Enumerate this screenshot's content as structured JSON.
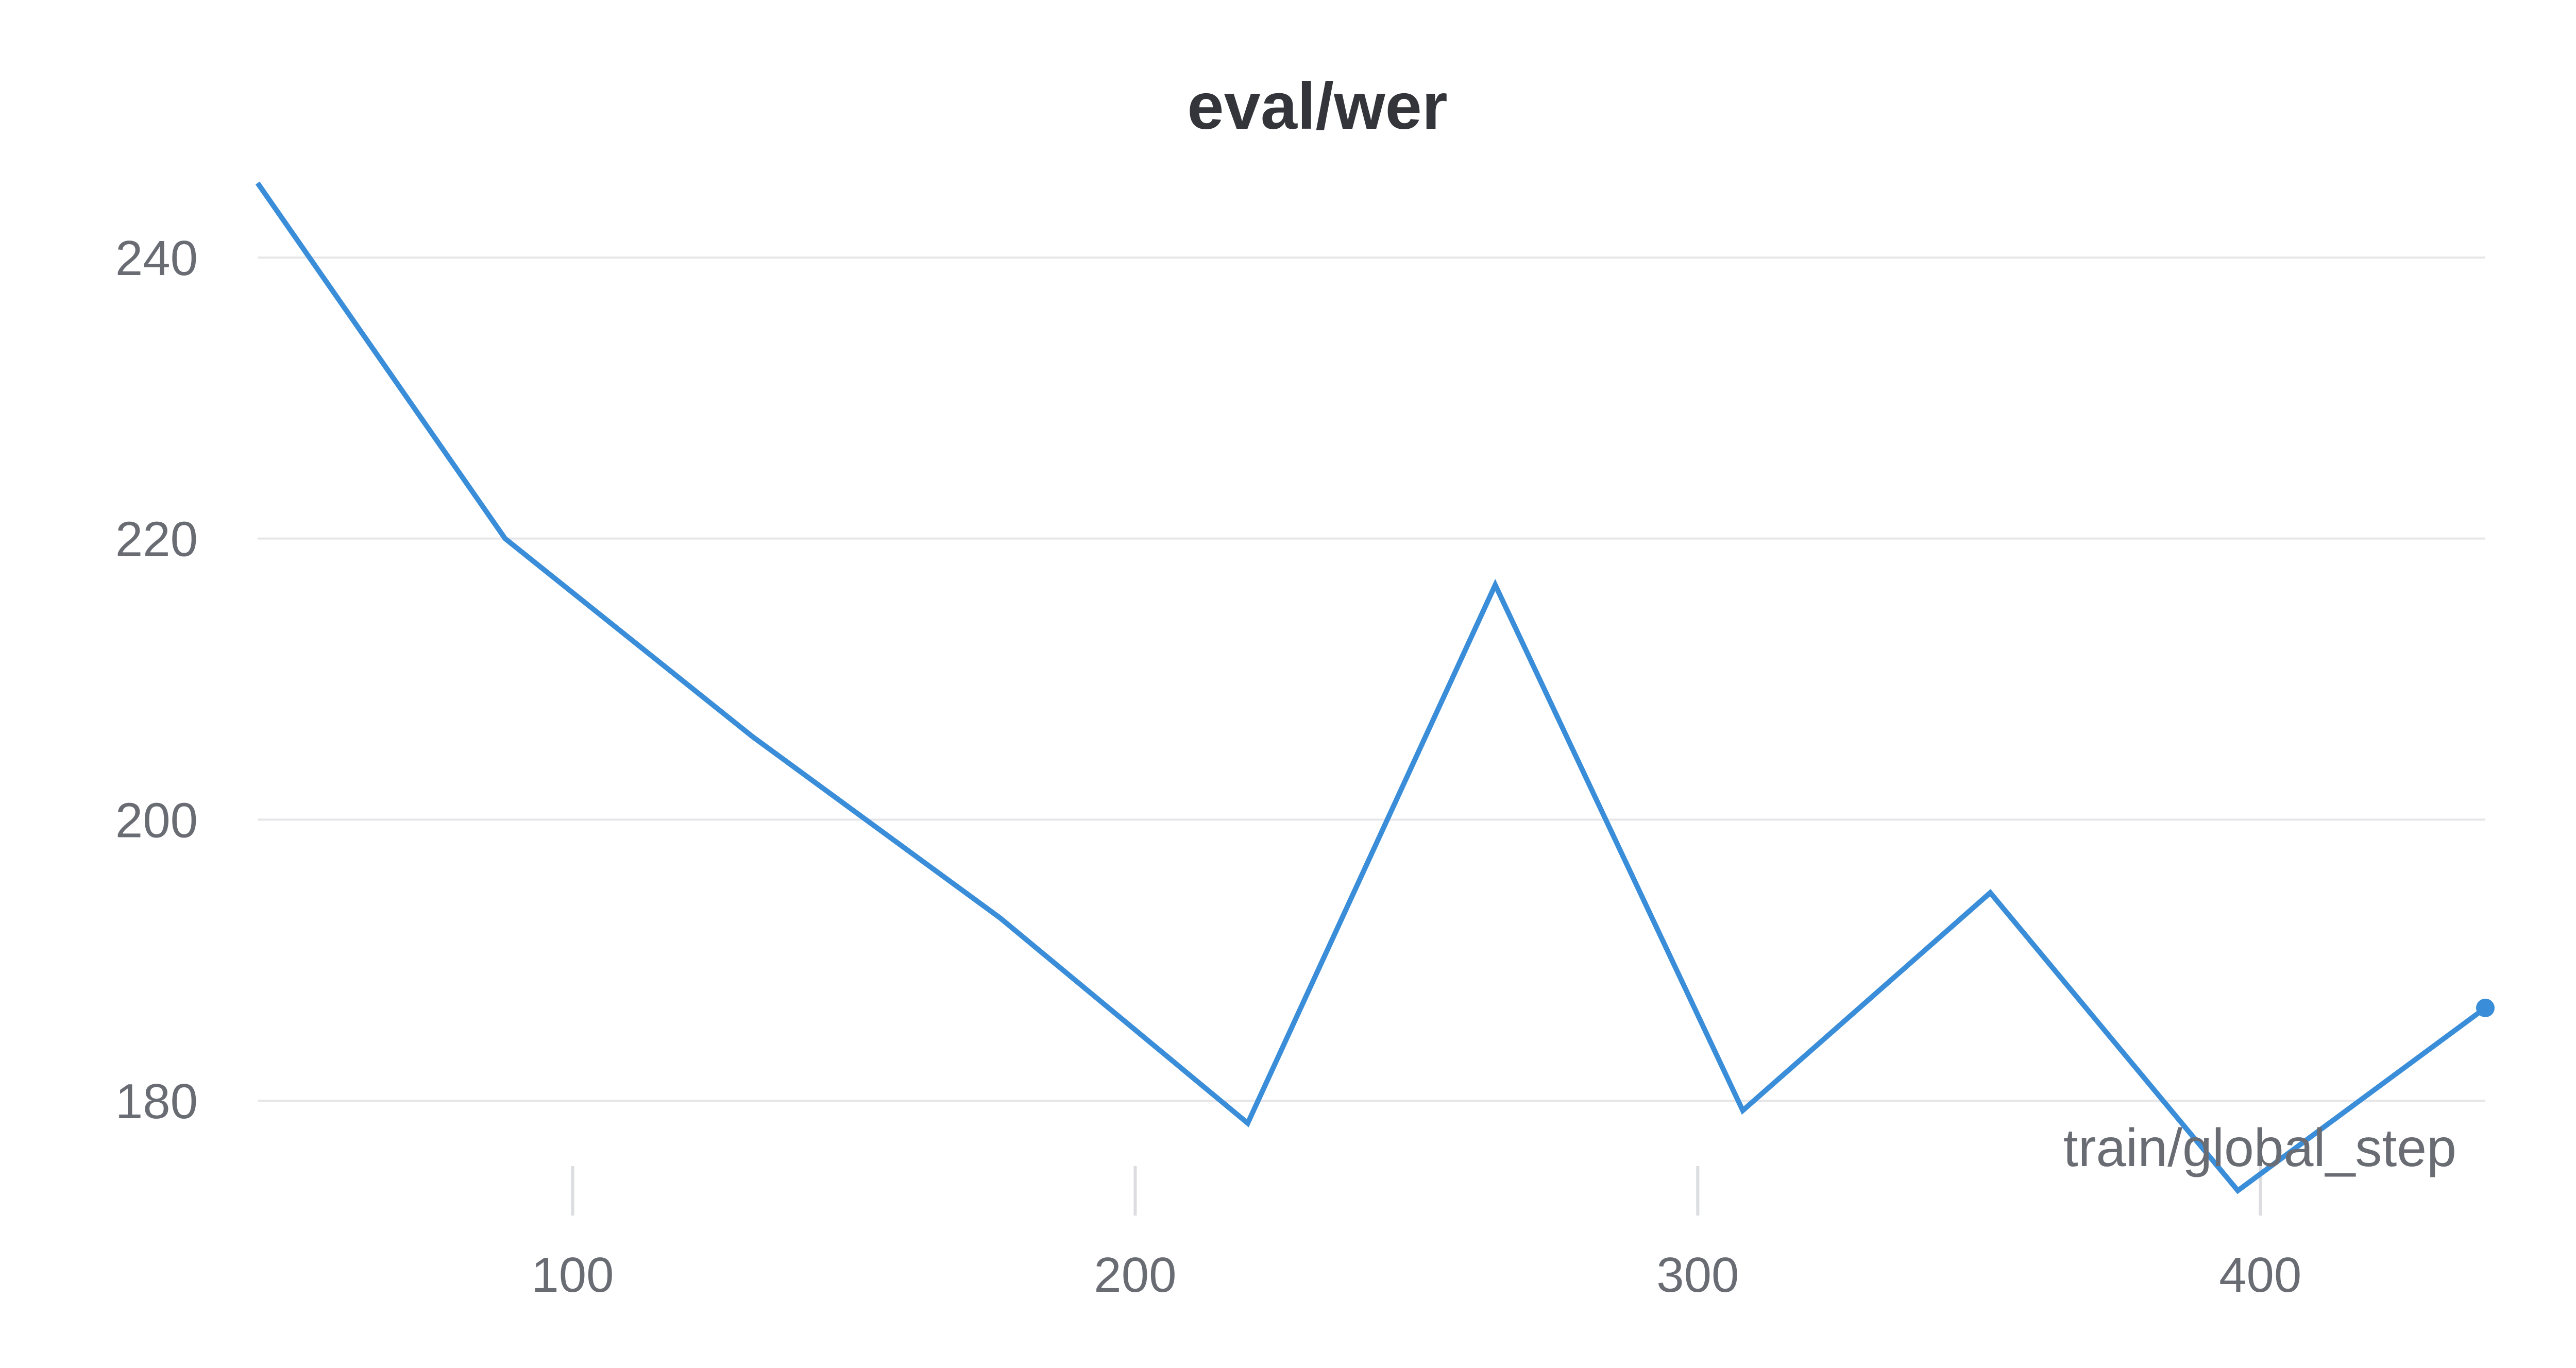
{
  "chart_data": {
    "type": "line",
    "title": "eval/wer",
    "xlabel": "train/global_step",
    "ylabel": "",
    "xlim": [
      44,
      440
    ],
    "ylim": [
      172,
      247
    ],
    "x_ticks": [
      100,
      200,
      300,
      400
    ],
    "y_ticks": [
      180,
      200,
      220,
      240
    ],
    "grid": true,
    "legend": "none",
    "series": [
      {
        "color": "#3a8dd8",
        "x": [
          44,
          88,
          132,
          176,
          220,
          264,
          308,
          352,
          396,
          440
        ],
        "y": [
          245.3,
          220.0,
          205.9,
          193.0,
          178.4,
          216.7,
          179.3,
          194.8,
          173.6,
          186.6
        ]
      }
    ]
  }
}
